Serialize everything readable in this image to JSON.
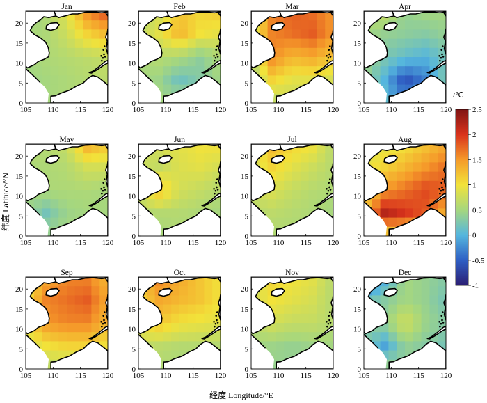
{
  "figure": {
    "panels": [
      {
        "month": "Jan",
        "pattern": [
          [
            0.45,
            0.55,
            0.9,
            1.6,
            1.9
          ],
          [
            0.5,
            0.55,
            0.75,
            1.1,
            1.3
          ],
          [
            0.5,
            0.55,
            0.6,
            0.65,
            0.7
          ],
          [
            0.45,
            0.5,
            0.55,
            0.6,
            0.65
          ],
          [
            0.45,
            0.5,
            0.55,
            0.6,
            0.6
          ]
        ]
      },
      {
        "month": "Feb",
        "pattern": [
          [
            0.6,
            0.75,
            1.2,
            1.1,
            1.2
          ],
          [
            0.65,
            0.9,
            1.3,
            1.0,
            0.9
          ],
          [
            0.55,
            0.6,
            0.55,
            0.35,
            0.55
          ],
          [
            0.5,
            0.45,
            0.15,
            0.3,
            0.5
          ],
          [
            0.45,
            0.5,
            0.5,
            0.5,
            0.5
          ]
        ]
      },
      {
        "month": "Mar",
        "pattern": [
          [
            0.7,
            1.6,
            1.8,
            1.7,
            1.5
          ],
          [
            0.8,
            1.6,
            1.7,
            1.8,
            1.5
          ],
          [
            0.6,
            1.6,
            1.3,
            1.4,
            1.2
          ],
          [
            0.5,
            1.1,
            0.9,
            0.9,
            0.8
          ],
          [
            0.45,
            0.6,
            0.7,
            0.7,
            0.7
          ]
        ]
      },
      {
        "month": "Apr",
        "pattern": [
          [
            0.6,
            0.7,
            0.4,
            0.5,
            0.5
          ],
          [
            0.5,
            0.4,
            0.35,
            0.3,
            0.4
          ],
          [
            0.45,
            0.25,
            0.1,
            0.0,
            0.2
          ],
          [
            0.45,
            0.0,
            -0.6,
            -0.3,
            0.3
          ],
          [
            0.4,
            0.1,
            -0.3,
            0.2,
            0.5
          ]
        ]
      },
      {
        "month": "May",
        "pattern": [
          [
            0.6,
            0.6,
            0.7,
            1.4,
            1.2
          ],
          [
            0.55,
            0.55,
            0.6,
            0.8,
            0.8
          ],
          [
            0.5,
            0.55,
            0.55,
            0.55,
            0.5
          ],
          [
            0.45,
            0.2,
            0.45,
            0.5,
            0.5
          ],
          [
            0.45,
            0.45,
            0.5,
            0.5,
            0.5
          ]
        ]
      },
      {
        "month": "Jun",
        "pattern": [
          [
            0.7,
            0.8,
            0.9,
            1.0,
            1.0
          ],
          [
            0.75,
            0.7,
            0.85,
            0.9,
            0.8
          ],
          [
            0.8,
            1.2,
            0.8,
            0.7,
            0.6
          ],
          [
            0.6,
            0.6,
            0.6,
            0.55,
            0.5
          ],
          [
            0.5,
            0.5,
            0.55,
            0.5,
            0.5
          ]
        ]
      },
      {
        "month": "Jul",
        "pattern": [
          [
            0.8,
            1.3,
            1.1,
            1.0,
            0.6
          ],
          [
            0.8,
            1.1,
            0.9,
            0.75,
            0.6
          ],
          [
            0.75,
            0.85,
            0.7,
            0.6,
            0.55
          ],
          [
            0.6,
            0.65,
            0.6,
            0.55,
            0.5
          ],
          [
            0.5,
            0.55,
            0.55,
            0.5,
            0.5
          ]
        ]
      },
      {
        "month": "Aug",
        "pattern": [
          [
            0.8,
            0.9,
            1.0,
            1.2,
            1.4
          ],
          [
            0.9,
            1.1,
            1.3,
            1.5,
            1.7
          ],
          [
            1.0,
            1.5,
            1.7,
            1.9,
            1.8
          ],
          [
            1.2,
            2.2,
            2.0,
            1.8,
            1.3
          ],
          [
            0.8,
            1.0,
            1.1,
            0.9,
            0.8
          ]
        ]
      },
      {
        "month": "Sep",
        "pattern": [
          [
            0.9,
            1.4,
            1.6,
            1.6,
            1.3
          ],
          [
            1.0,
            1.6,
            1.7,
            1.8,
            1.4
          ],
          [
            1.0,
            1.5,
            1.6,
            1.6,
            1.3
          ],
          [
            0.8,
            1.0,
            1.1,
            1.1,
            1.0
          ],
          [
            0.6,
            0.6,
            0.6,
            0.6,
            0.6
          ]
        ]
      },
      {
        "month": "Oct",
        "pattern": [
          [
            1.1,
            1.6,
            1.4,
            1.2,
            1.0
          ],
          [
            1.1,
            1.4,
            1.3,
            1.2,
            1.0
          ],
          [
            1.0,
            1.2,
            1.0,
            0.95,
            0.9
          ],
          [
            0.7,
            0.65,
            0.6,
            0.6,
            0.6
          ],
          [
            0.55,
            0.55,
            0.5,
            0.5,
            0.5
          ]
        ]
      },
      {
        "month": "Nov",
        "pattern": [
          [
            0.7,
            1.1,
            1.0,
            0.9,
            0.6
          ],
          [
            0.8,
            1.0,
            0.9,
            0.8,
            0.6
          ],
          [
            0.6,
            0.8,
            0.7,
            0.7,
            0.6
          ],
          [
            0.5,
            0.45,
            0.4,
            0.45,
            0.5
          ],
          [
            0.45,
            0.4,
            0.4,
            0.45,
            0.5
          ]
        ]
      },
      {
        "month": "Dec",
        "pattern": [
          [
            -0.6,
            -0.1,
            0.5,
            0.4,
            0.3
          ],
          [
            0.1,
            0.3,
            0.5,
            0.4,
            0.2
          ],
          [
            0.3,
            0.4,
            0.8,
            0.45,
            0.3
          ],
          [
            0.3,
            -0.1,
            0.4,
            0.3,
            0.2
          ],
          [
            0.4,
            0.5,
            0.3,
            0.5,
            0.4
          ]
        ]
      }
    ],
    "x_ticks": [
      "105",
      "110",
      "115",
      "120"
    ],
    "y_ticks": [
      "0",
      "5",
      "10",
      "15",
      "20"
    ],
    "x_label": "经度 Longitude/°E",
    "y_label": "纬度 Latitude/°N",
    "colorbar": {
      "unit": "/℃",
      "ticks": [
        "2.5",
        "2",
        "1.5",
        "1",
        "0.5",
        "0",
        "-0.5",
        "-1"
      ],
      "min": -1,
      "max": 2.5,
      "colormap": [
        "#2b1e73",
        "#2f5fc4",
        "#55b6de",
        "#a6d77e",
        "#f2e23a",
        "#f59a2a",
        "#d9321c",
        "#7f1414"
      ]
    },
    "colors": {
      "land": "#ffffff",
      "coast": "#000000",
      "background": "#ffffff"
    }
  }
}
